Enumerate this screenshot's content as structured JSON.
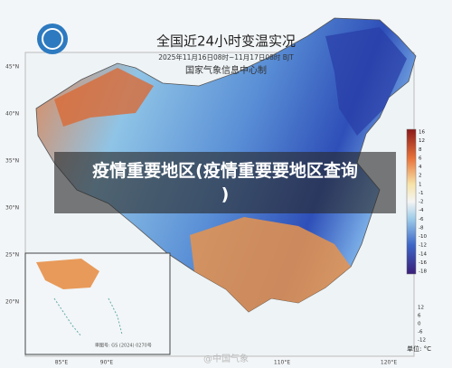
{
  "header": {
    "title": "全国近24小时变温实况",
    "subtitle": "2025年11月16日08时~11月17日08时 BJT",
    "agency": "国家气象信息中心制"
  },
  "overlay": {
    "caption_line1": "疫情重要地区(疫情重要要地区查询",
    "caption_line2": ")"
  },
  "axes": {
    "lat": [
      "45°N",
      "40°N",
      "35°N",
      "30°N",
      "25°N",
      "20°N"
    ],
    "lon": [
      "85°E",
      "90°E",
      "110°E",
      "120°E"
    ]
  },
  "legend": {
    "labels": [
      "16",
      "12",
      "8",
      "6",
      "4",
      "2",
      "1",
      "-1",
      "-2",
      "-4",
      "-6",
      "-8",
      "-10",
      "-12",
      "-14",
      "-16",
      "-18"
    ],
    "small_labels": [
      "12",
      "6",
      "0",
      "-6",
      "-12"
    ],
    "unit": "单位: °C"
  },
  "inset": {
    "note": "审图号: GS (2024) 0270号"
  },
  "watermark": "@中国气象"
}
